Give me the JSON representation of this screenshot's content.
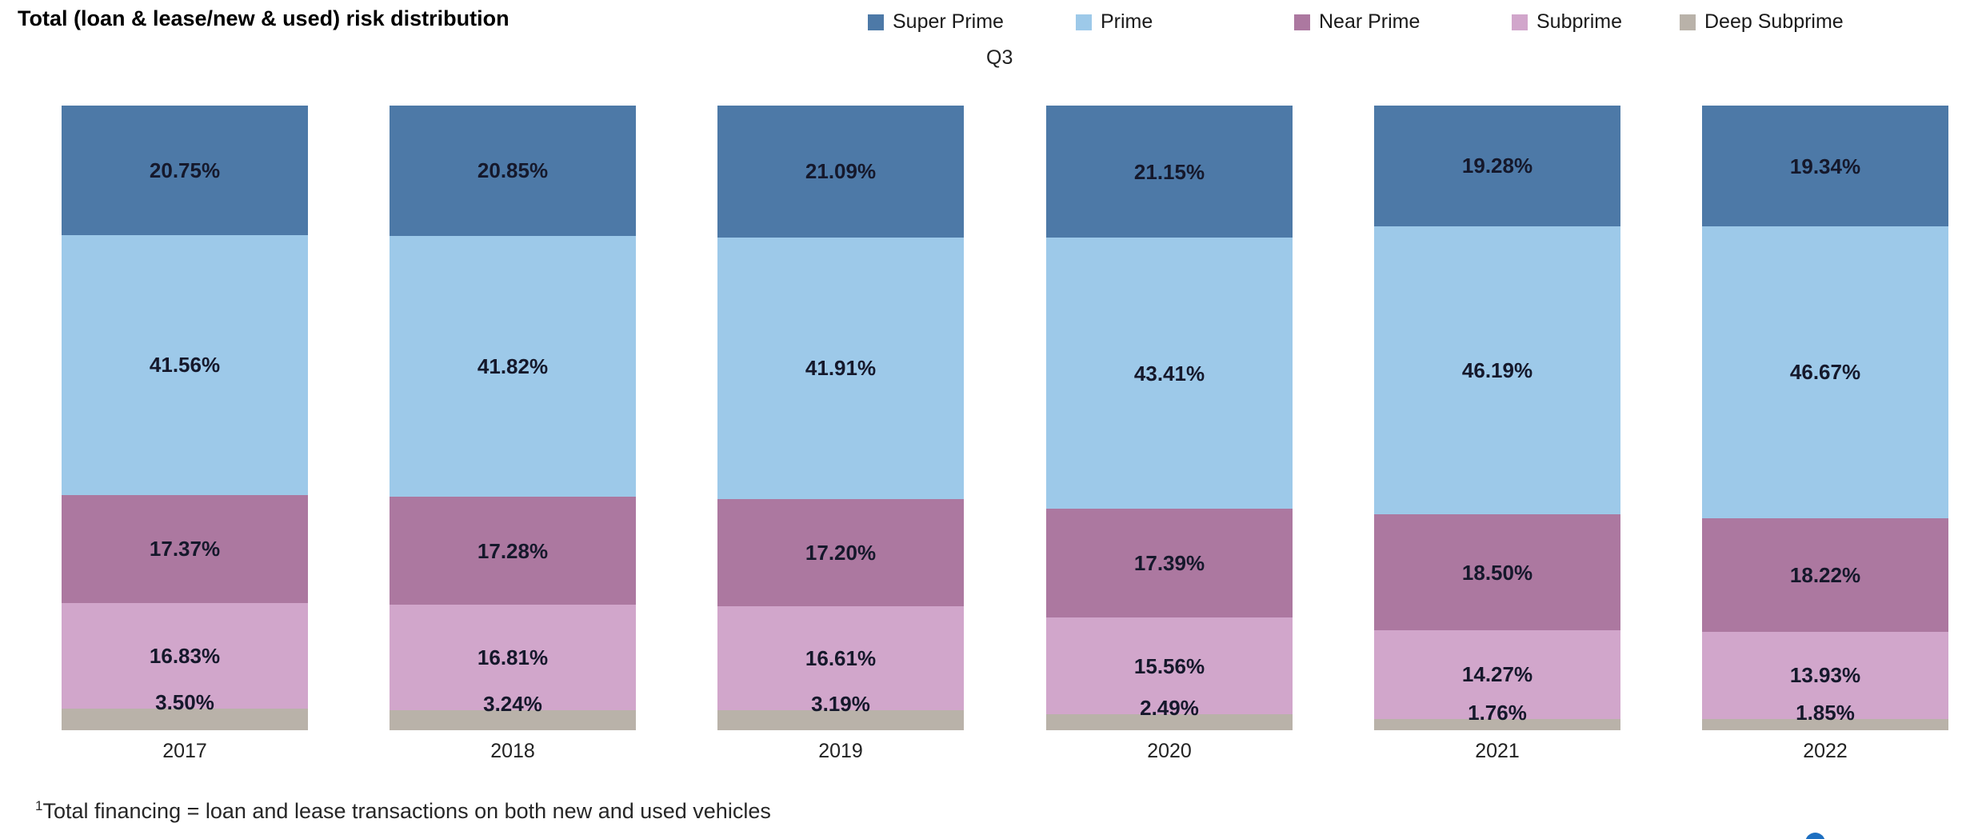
{
  "title": "Total (loan & lease/new & used) risk distribution",
  "quarter_label": "Q3",
  "footnote_superscript": "1",
  "footnote": "Total financing = loan and lease transactions on both new and used vehicles",
  "colors": {
    "super_prime": "#4d79a7",
    "prime": "#9dc9e9",
    "near_prime": "#ac78a0",
    "subprime": "#d1a6cb",
    "deep_subprime": "#b9b2a9",
    "corner_icon_blue": "#1d6fc1",
    "value_label_text": "#15182b"
  },
  "legend": [
    {
      "label": "Super Prime",
      "color": "#4d79a7"
    },
    {
      "label": "Prime",
      "color": "#9dc9e9"
    },
    {
      "label": "Near Prime",
      "color": "#ac78a0"
    },
    {
      "label": "Subprime",
      "color": "#d1a6cb"
    },
    {
      "label": "Deep Subprime",
      "color": "#b9b2a9"
    }
  ],
  "chart_data": {
    "type": "bar",
    "stacked": true,
    "orientation": "vertical",
    "unit": "%",
    "title": "Total (loan & lease/new & used) risk distribution",
    "subtitle": "Q3",
    "xlabel": "",
    "ylabel": "",
    "ylim": [
      0,
      100
    ],
    "grid": false,
    "legend_position": "top",
    "value_label_format": "##.##%",
    "categories": [
      "2017",
      "2018",
      "2019",
      "2020",
      "2021",
      "2022"
    ],
    "series": [
      {
        "name": "Super Prime",
        "color": "#4d79a7",
        "values": [
          20.75,
          20.85,
          21.09,
          21.15,
          19.28,
          19.34
        ]
      },
      {
        "name": "Prime",
        "color": "#9dc9e9",
        "values": [
          41.56,
          41.82,
          41.91,
          43.41,
          46.19,
          46.67
        ]
      },
      {
        "name": "Near Prime",
        "color": "#ac78a0",
        "values": [
          17.37,
          17.28,
          17.2,
          17.39,
          18.5,
          18.22
        ]
      },
      {
        "name": "Subprime",
        "color": "#d1a6cb",
        "values": [
          16.83,
          16.81,
          16.61,
          15.56,
          14.27,
          13.93
        ]
      },
      {
        "name": "Deep Subprime",
        "color": "#b9b2a9",
        "values": [
          3.5,
          3.24,
          3.19,
          2.49,
          1.76,
          1.85
        ]
      }
    ]
  }
}
